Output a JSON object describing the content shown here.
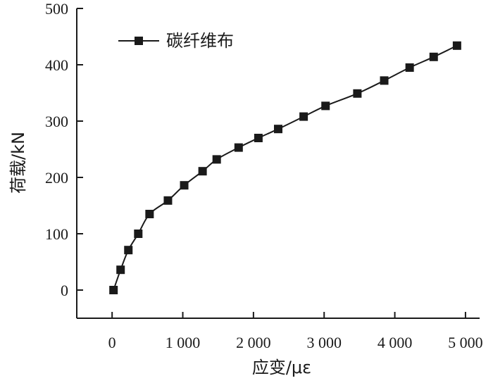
{
  "chart_data": {
    "type": "line",
    "xlabel": "应变/με",
    "ylabel": "荷载/kN",
    "xlim": [
      -500,
      5200
    ],
    "ylim": [
      -50,
      500
    ],
    "x_ticks": [
      0,
      1000,
      2000,
      3000,
      4000,
      5000
    ],
    "x_tick_labels": [
      "0",
      "1 000",
      "2 000",
      "3 000",
      "4 000",
      "5 000"
    ],
    "y_ticks": [
      0,
      100,
      200,
      300,
      400,
      500
    ],
    "y_tick_labels": [
      "0",
      "100",
      "200",
      "300",
      "400",
      "500"
    ],
    "grid": false,
    "legend_position": "top-left",
    "series": [
      {
        "name": "碳纤维布",
        "marker": "square",
        "color": "#1a1a1a",
        "x": [
          20,
          120,
          230,
          370,
          530,
          790,
          1020,
          1280,
          1480,
          1790,
          2070,
          2350,
          2710,
          3020,
          3470,
          3850,
          4210,
          4550,
          4880
        ],
        "y": [
          0,
          36,
          71,
          100,
          135,
          159,
          186,
          211,
          232,
          253,
          270,
          286,
          308,
          327,
          349,
          372,
          395,
          414,
          434
        ]
      }
    ]
  }
}
